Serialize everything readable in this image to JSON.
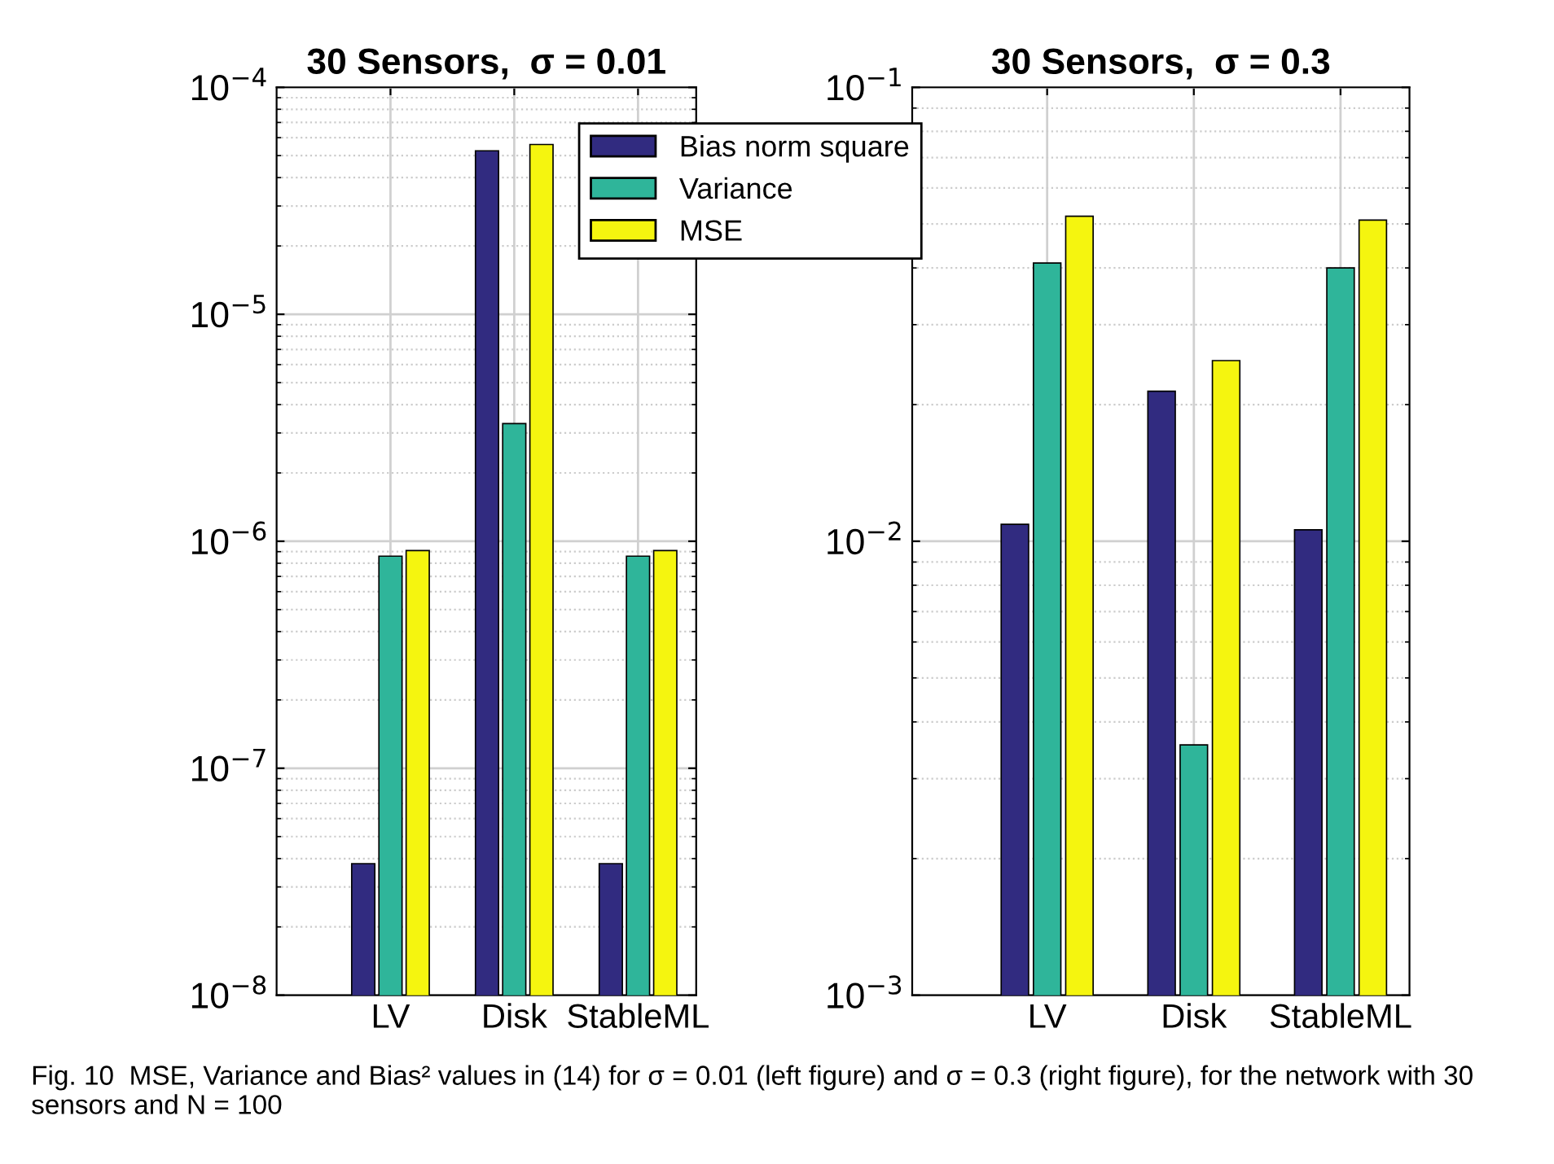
{
  "chart_data": [
    {
      "type": "bar",
      "title": "30 Sensors,  σ = 0.01",
      "categories": [
        "LV",
        "Disk",
        "StableML"
      ],
      "series": [
        {
          "name": "Bias norm square",
          "color": "#312b80",
          "values": [
            3.8e-08,
            5.25e-05,
            3.8e-08
          ]
        },
        {
          "name": "Variance",
          "color": "#2fb59a",
          "values": [
            8.6e-07,
            3.3e-06,
            8.6e-07
          ]
        },
        {
          "name": "MSE",
          "color": "#f5f50f",
          "values": [
            9.1e-07,
            5.6e-05,
            9.1e-07
          ]
        }
      ],
      "log": true,
      "ylim": [
        1e-08,
        0.0001
      ],
      "yticks": [
        {
          "value": 1e-08,
          "label": "10$^{−8}$"
        },
        {
          "value": 1e-07,
          "label": "10$^{−7}$"
        },
        {
          "value": 1e-06,
          "label": "10$^{−6}$"
        },
        {
          "value": 1e-05,
          "label": "10$^{−5}$"
        },
        {
          "value": 0.0001,
          "label": "10$^{−4}$"
        }
      ],
      "grid": true,
      "legend": "top right",
      "annotations": [
        "Fig. 10  MSE, Variance and Bias² values in (14) for σ = 0.01 (left figure) and σ = 0.3 (right figure), for the network with 30 sensors and N = 100"
      ]
    },
    {
      "type": "bar",
      "title": "30 Sensors,  σ = 0.3",
      "categories": [
        "LV",
        "Disk",
        "StableML"
      ],
      "series": [
        {
          "color": "#312b80",
          "values": [
            0.0109,
            0.0214,
            0.0106
          ]
        },
        {
          "color": "#2fb59a",
          "values": [
            0.041,
            0.00356,
            0.04
          ]
        },
        {
          "color": "#f5f50f",
          "values": [
            0.052,
            0.025,
            0.051
          ]
        }
      ],
      "log": true,
      "ylim": [
        0.001,
        0.1
      ],
      "yticks": [
        {
          "value": 0.001,
          "label": "10$^{−3}$"
        },
        {
          "value": 0.01,
          "label": "10$^{−2}$"
        },
        {
          "value": 0.1,
          "label": "10$^{−1}$"
        }
      ],
      "grid": true
    }
  ]
}
